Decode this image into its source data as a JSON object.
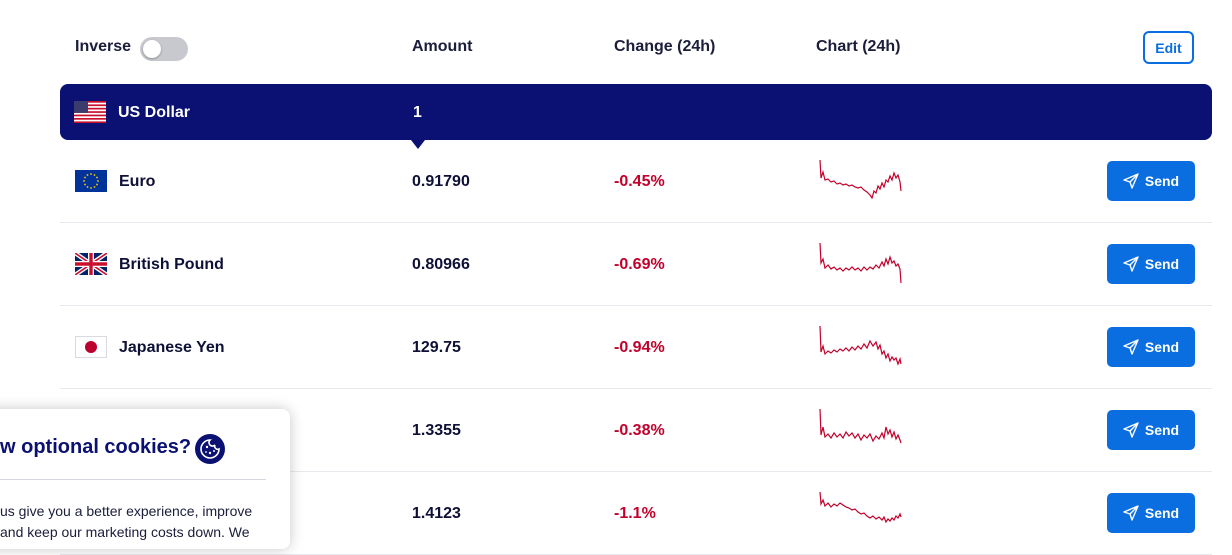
{
  "header": {
    "inverse_label": "Inverse",
    "amount_label": "Amount",
    "change_label": "Change (24h)",
    "chart_label": "Chart (24h)",
    "edit_label": "Edit",
    "inverse_on": false
  },
  "base": {
    "name": "US Dollar",
    "amount": "1",
    "flag": "us-flag-icon"
  },
  "rows": [
    {
      "name": "Euro",
      "amount": "0.91790",
      "change": "-0.45%",
      "flag": "eu-flag-icon",
      "send_label": "Send"
    },
    {
      "name": "British Pound",
      "amount": "0.80966",
      "change": "-0.69%",
      "flag": "uk-flag-icon",
      "send_label": "Send"
    },
    {
      "name": "Japanese Yen",
      "amount": "129.75",
      "change": "-0.94%",
      "flag": "jp-flag-icon",
      "send_label": "Send"
    },
    {
      "name": "",
      "amount": "1.3355",
      "change": "-0.38%",
      "flag": "",
      "send_label": "Send"
    },
    {
      "name": "",
      "amount": "1.4123",
      "change": "-1.1%",
      "flag": "",
      "send_label": "Send"
    }
  ],
  "cookie": {
    "title": "w optional cookies?",
    "text": "us give you a better experience, improve and keep our marketing costs down. We"
  },
  "colors": {
    "navy": "#0b1172",
    "accent": "#0a6ee0",
    "negative": "#c1002b"
  }
}
